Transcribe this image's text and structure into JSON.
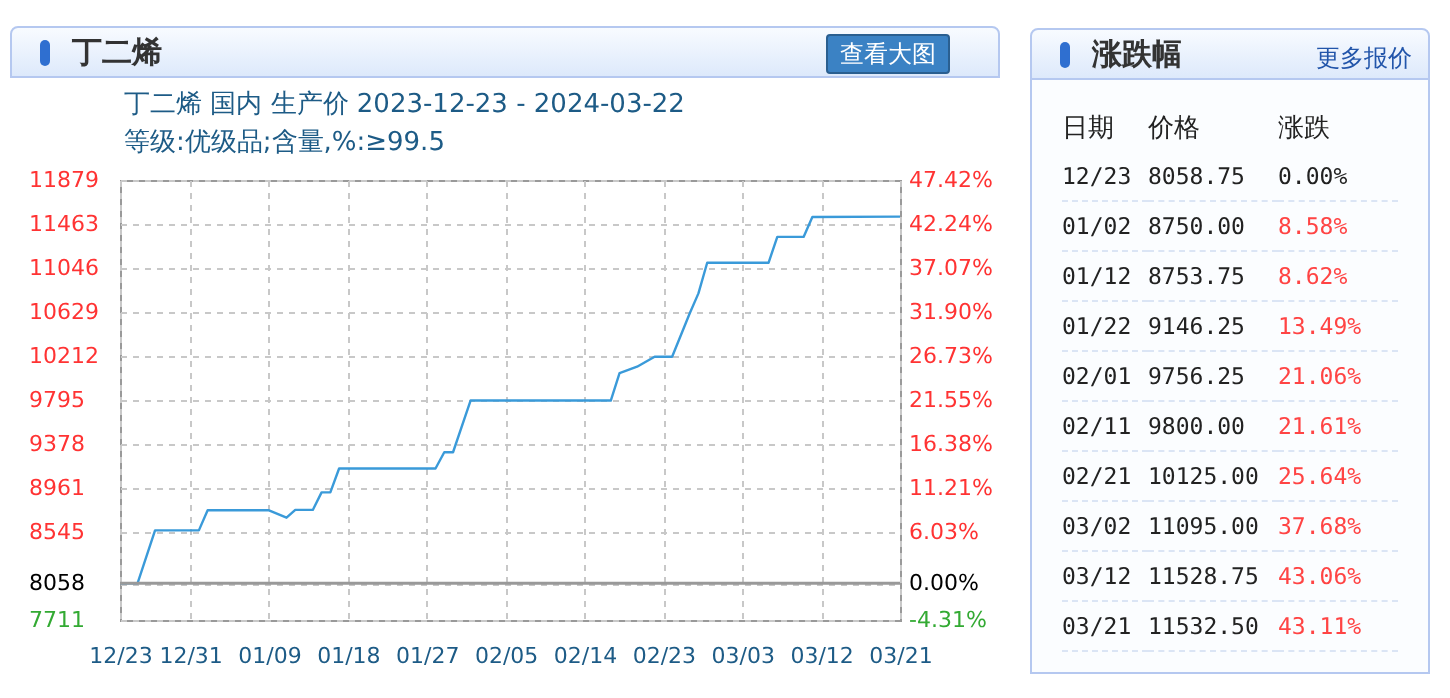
{
  "chart_data": [
    {
      "type": "line",
      "title": "丁二烯 国内 生产价 2023-12-23 - 2024-03-22",
      "subtitle": "等级:优级品;含量,%:≥99.5",
      "annotations": [
        "丁二烯",
        "查看大图"
      ],
      "x": [
        "2023-12-23",
        "2023-12-25",
        "2023-12-27",
        "2024-01-01",
        "2024-01-02",
        "2024-01-09",
        "2024-01-11",
        "2024-01-12",
        "2024-01-14",
        "2024-01-15",
        "2024-01-16",
        "2024-01-17",
        "2024-01-28",
        "2024-01-29",
        "2024-01-30",
        "2024-02-01",
        "2024-02-17",
        "2024-02-18",
        "2024-02-20",
        "2024-02-22",
        "2024-02-24",
        "2024-02-26",
        "2024-02-27",
        "2024-02-28",
        "2024-03-06",
        "2024-03-07",
        "2024-03-10",
        "2024-03-11",
        "2024-03-21"
      ],
      "series": [
        {
          "color": "#3a9ad9",
          "values": [
            8058.75,
            8058.75,
            8560,
            8560,
            8750,
            8750,
            8680,
            8753.75,
            8753.75,
            8920,
            8920,
            9146.25,
            9146.25,
            9300,
            9300,
            9790,
            9790,
            10050,
            10110,
            10205,
            10205,
            10615,
            10805,
            11095,
            11095,
            11340,
            11340,
            11528.75,
            11532.5
          ]
        }
      ],
      "xlim": [
        "2023-12-23",
        "2024-03-21"
      ],
      "xticks": [
        {
          "value": "2023-12-23",
          "label": "12/23"
        },
        {
          "value": "2023-12-31",
          "label": "12/31"
        },
        {
          "value": "2024-01-09",
          "label": "01/09"
        },
        {
          "value": "2024-01-18",
          "label": "01/18"
        },
        {
          "value": "2024-01-27",
          "label": "01/27"
        },
        {
          "value": "2024-02-05",
          "label": "02/05"
        },
        {
          "value": "2024-02-14",
          "label": "02/14"
        },
        {
          "value": "2024-02-23",
          "label": "02/23"
        },
        {
          "value": "2024-03-03",
          "label": "03/03"
        },
        {
          "value": "2024-03-12",
          "label": "03/12"
        },
        {
          "value": "2024-03-21",
          "label": "03/21"
        }
      ],
      "ylim": [
        7711,
        11879
      ],
      "yticks": [
        7711,
        8058,
        8545,
        8961,
        9378,
        9795,
        10212,
        10629,
        11046,
        11463,
        11879
      ],
      "y2lim": [
        -4.31,
        47.42
      ],
      "y2ticks": [
        {
          "value": -4.31,
          "label": "-4.31%"
        },
        {
          "value": 0,
          "label": "0.00%"
        },
        {
          "value": 6.03,
          "label": "6.03%"
        },
        {
          "value": 11.21,
          "label": "11.21%"
        },
        {
          "value": 16.38,
          "label": "16.38%"
        },
        {
          "value": 21.55,
          "label": "21.55%"
        },
        {
          "value": 26.73,
          "label": "26.73%"
        },
        {
          "value": 31.9,
          "label": "31.90%"
        },
        {
          "value": 37.07,
          "label": "37.07%"
        },
        {
          "value": 42.24,
          "label": "42.24%"
        },
        {
          "value": 47.42,
          "label": "47.42%"
        }
      ],
      "ref_lines": [
        {
          "axis": "y",
          "value": 8058,
          "color": "#999999"
        }
      ],
      "grid": true
    },
    {
      "type": "other",
      "title": "涨跌幅",
      "annotations": [
        "更多报价",
        "日期",
        "价格",
        "涨跌",
        "12/23",
        "8058.75",
        "0.00%",
        "01/02",
        "8750.00",
        "8.58%",
        "01/12",
        "8753.75",
        "8.62%",
        "01/22",
        "9146.25",
        "13.49%",
        "02/01",
        "9756.25",
        "21.06%",
        "02/11",
        "9800.00",
        "21.61%",
        "02/21",
        "10125.00",
        "25.64%",
        "03/02",
        "11095.00",
        "37.68%",
        "03/12",
        "11528.75",
        "43.06%",
        "03/21",
        "11532.50",
        "43.11%"
      ]
    }
  ]
}
